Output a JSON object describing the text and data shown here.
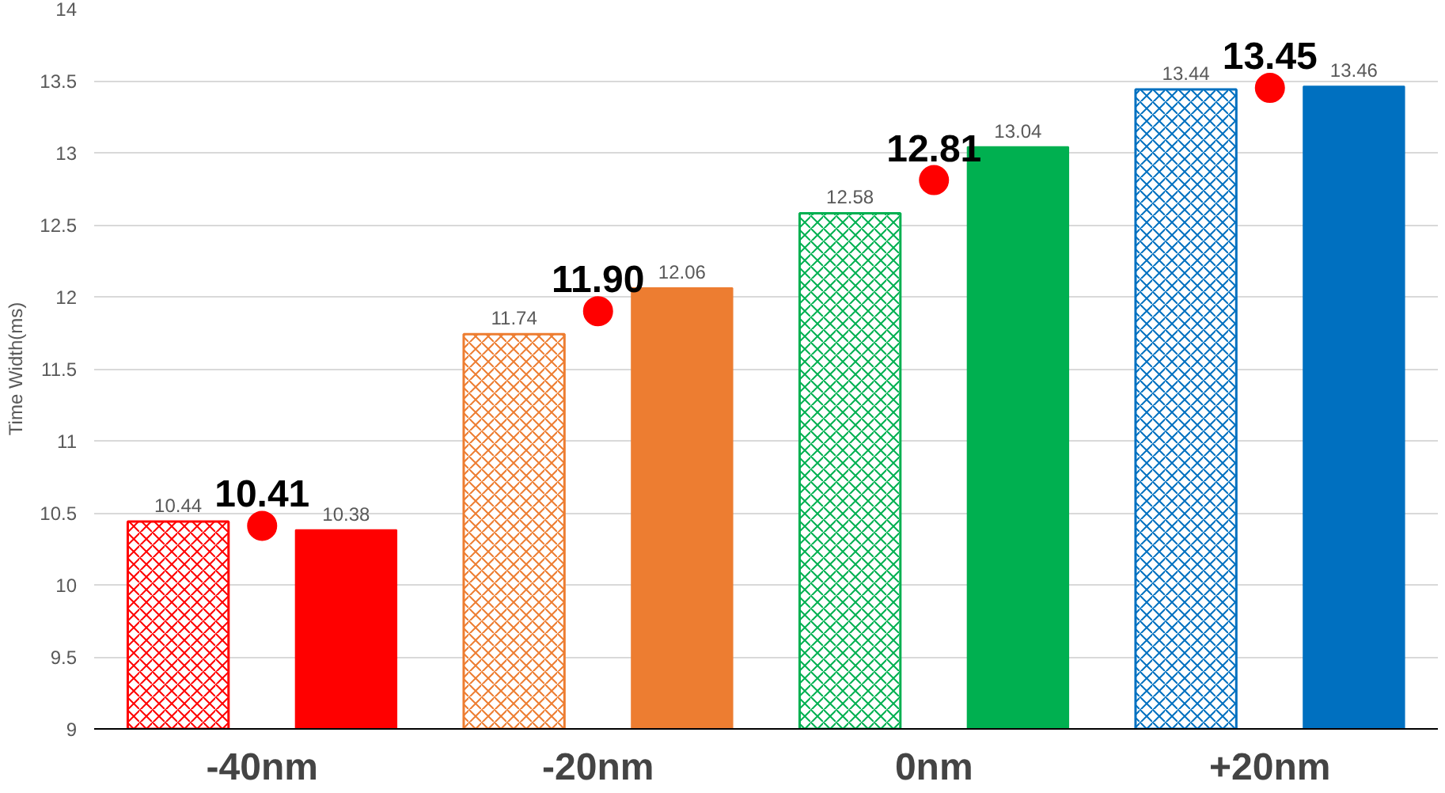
{
  "chart_data": {
    "type": "bar",
    "ylabel": "Time Width(ms)",
    "categories": [
      "-40nm",
      "-20nm",
      "0nm",
      "+20nm"
    ],
    "ylim": [
      9,
      14
    ],
    "yticks": [
      9,
      9.5,
      10,
      10.5,
      11,
      11.5,
      12,
      12.5,
      13,
      13.5,
      14
    ],
    "grid": "y",
    "data_labels": true,
    "series": [
      {
        "colors": [
          "#ff0000",
          "#ed7d31",
          "#00b050",
          "#0070c0"
        ],
        "values": [
          10.44,
          11.74,
          12.58,
          13.44
        ]
      },
      {
        "colors": [
          "#ff0000",
          "#ed7d31",
          "#00b050",
          "#0070c0"
        ],
        "values": [
          10.38,
          12.06,
          13.04,
          13.46
        ]
      },
      {
        "type": "scatter",
        "color": "#ff0000",
        "marker": "circle",
        "values": [
          10.41,
          11.9,
          12.81,
          13.45
        ],
        "value_labels": [
          "10.41",
          "11.90",
          "12.81",
          "13.45"
        ]
      }
    ]
  }
}
